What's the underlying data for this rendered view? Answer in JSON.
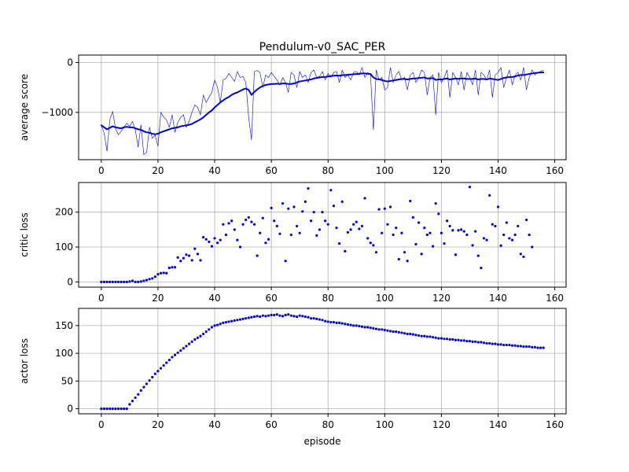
{
  "title": "Pendulum-v0_SAC_PER",
  "colors": {
    "series": "#0000cc",
    "grid": "#b0b0b0",
    "axis": "#000000"
  },
  "chart_data": [
    {
      "id": "score",
      "type": "line",
      "title": "Pendulum-v0_SAC_PER",
      "xlabel": "",
      "ylabel": "average score",
      "xlim": [
        -8,
        164
      ],
      "ylim": [
        -1950,
        150
      ],
      "xticks": [
        0,
        20,
        40,
        60,
        80,
        100,
        120,
        140,
        160
      ],
      "yticks": [
        -1000,
        0
      ],
      "ytick_labels": [
        "−1000",
        "0"
      ],
      "grid": true,
      "series": [
        {
          "style": "thin",
          "values": [
            -1260,
            -1420,
            -1780,
            -1150,
            -980,
            -1320,
            -1450,
            -1380,
            -1300,
            -1220,
            -1280,
            -1180,
            -1350,
            -1700,
            -1250,
            -1850,
            -1800,
            -1300,
            -1520,
            -1460,
            -1680,
            -1000,
            -1090,
            -1150,
            -1300,
            -1050,
            -1400,
            -1200,
            -1100,
            -1050,
            -1300,
            -1180,
            -1000,
            -850,
            -900,
            -1050,
            -650,
            -800,
            -700,
            -600,
            -350,
            -500,
            -800,
            -350,
            -320,
            -220,
            -300,
            -380,
            -180,
            -300,
            -280,
            -400,
            -1100,
            -1550,
            -180,
            -160,
            -200,
            -500,
            -250,
            -300,
            -200,
            -280,
            -350,
            -450,
            -300,
            -400,
            -600,
            -200,
            -250,
            -500,
            -180,
            -300,
            -250,
            -400,
            -200,
            -150,
            -300,
            -280,
            -180,
            -350,
            -220,
            -300,
            -200,
            -180,
            -400,
            -150,
            -300,
            -250,
            -350,
            -200,
            -180,
            -250,
            -100,
            -300,
            -200,
            -250,
            -1350,
            -150,
            -350,
            -300,
            -550,
            -500,
            -100,
            -400,
            -250,
            -180,
            -350,
            -300,
            -550,
            -250,
            -200,
            -400,
            -300,
            -150,
            -200,
            -650,
            -300,
            -250,
            -1050,
            -200,
            -400,
            -300,
            -150,
            -700,
            -200,
            -300,
            -450,
            -180,
            -550,
            -200,
            -300,
            -450,
            -150,
            -650,
            -200,
            -250,
            -350,
            -150,
            -700,
            -250,
            -200,
            -100,
            -500,
            -300,
            -150,
            -450,
            -250,
            -200,
            -350,
            -100,
            -550,
            -300,
            -150,
            -250,
            -200,
            -180,
            -150
          ]
        },
        {
          "style": "thick",
          "values": [
            -1260,
            -1300,
            -1340,
            -1310,
            -1280,
            -1300,
            -1310,
            -1320,
            -1300,
            -1290,
            -1300,
            -1300,
            -1320,
            -1340,
            -1350,
            -1380,
            -1400,
            -1410,
            -1430,
            -1440,
            -1430,
            -1400,
            -1380,
            -1360,
            -1340,
            -1320,
            -1310,
            -1300,
            -1280,
            -1270,
            -1260,
            -1250,
            -1230,
            -1200,
            -1170,
            -1140,
            -1100,
            -1050,
            -1000,
            -960,
            -900,
            -850,
            -800,
            -760,
            -720,
            -690,
            -650,
            -620,
            -600,
            -570,
            -540,
            -520,
            -550,
            -650,
            -590,
            -540,
            -500,
            -470,
            -450,
            -440,
            -430,
            -430,
            -425,
            -430,
            -420,
            -420,
            -430,
            -430,
            -420,
            -400,
            -380,
            -370,
            -360,
            -350,
            -340,
            -320,
            -310,
            -300,
            -290,
            -290,
            -280,
            -270,
            -265,
            -260,
            -265,
            -255,
            -250,
            -245,
            -240,
            -235,
            -230,
            -225,
            -220,
            -220,
            -225,
            -230,
            -300,
            -330,
            -340,
            -350,
            -370,
            -380,
            -370,
            -360,
            -350,
            -340,
            -330,
            -330,
            -340,
            -330,
            -320,
            -320,
            -310,
            -305,
            -300,
            -320,
            -320,
            -310,
            -350,
            -340,
            -340,
            -330,
            -320,
            -340,
            -330,
            -320,
            -330,
            -320,
            -320,
            -330,
            -330,
            -330,
            -320,
            -340,
            -330,
            -330,
            -340,
            -320,
            -330,
            -340,
            -350,
            -330,
            -310,
            -300,
            -290,
            -290,
            -280,
            -260,
            -250,
            -250,
            -240,
            -230,
            -220,
            -210,
            -205,
            -200,
            -200
          ]
        }
      ]
    },
    {
      "id": "critic",
      "type": "scatter",
      "xlabel": "",
      "ylabel": "critic loss",
      "xlim": [
        -8,
        164
      ],
      "ylim": [
        -15,
        285
      ],
      "xticks": [
        0,
        20,
        40,
        60,
        80,
        100,
        120,
        140,
        160
      ],
      "yticks": [
        0,
        100,
        200
      ],
      "ytick_labels": [
        "0",
        "100",
        "200"
      ],
      "grid": true,
      "values": [
        0,
        0,
        0,
        0,
        0,
        0,
        0,
        0,
        0,
        0,
        1,
        3,
        0,
        0,
        1,
        3,
        5,
        8,
        10,
        15,
        22,
        25,
        26,
        25,
        40,
        42,
        42,
        70,
        60,
        68,
        78,
        75,
        62,
        95,
        80,
        62,
        128,
        122,
        115,
        102,
        125,
        112,
        120,
        165,
        135,
        168,
        175,
        150,
        120,
        100,
        165,
        178,
        185,
        172,
        165,
        75,
        140,
        183,
        112,
        122,
        212,
        175,
        160,
        138,
        225,
        60,
        210,
        135,
        215,
        160,
        140,
        202,
        230,
        268,
        175,
        200,
        133,
        150,
        200,
        175,
        165,
        263,
        218,
        155,
        110,
        230,
        88,
        142,
        150,
        165,
        172,
        152,
        160,
        240,
        125,
        112,
        105,
        85,
        208,
        140,
        210,
        165,
        215,
        135,
        155,
        65,
        140,
        85,
        60,
        232,
        185,
        108,
        170,
        80,
        155,
        135,
        140,
        102,
        225,
        195,
        140,
        110,
        175,
        160,
        148,
        78,
        148,
        150,
        145,
        135,
        272,
        105,
        145,
        75,
        40,
        125,
        120,
        248,
        165,
        160,
        215,
        104,
        135,
        170,
        125,
        120,
        135,
        160,
        80,
        72,
        178,
        135,
        100
      ]
    },
    {
      "id": "actor",
      "type": "scatter",
      "xlabel": "episode",
      "ylabel": "actor loss",
      "xlim": [
        -8,
        164
      ],
      "ylim": [
        -9,
        181
      ],
      "xticks": [
        0,
        20,
        40,
        60,
        80,
        100,
        120,
        140,
        160
      ],
      "yticks": [
        0,
        50,
        100,
        150
      ],
      "ytick_labels": [
        "0",
        "50",
        "100",
        "150"
      ],
      "grid": true,
      "values": [
        0,
        0,
        0,
        0,
        0,
        0,
        0,
        0,
        0,
        0,
        8,
        14,
        20,
        26,
        33,
        39,
        45,
        51,
        57,
        63,
        68,
        73,
        78,
        83,
        88,
        93,
        97,
        101,
        105,
        109,
        113,
        117,
        121,
        125,
        128,
        131,
        135,
        139,
        143,
        147,
        150,
        151,
        153,
        155,
        156,
        157,
        158,
        159,
        160,
        161,
        162,
        163,
        164,
        165,
        166,
        167,
        166,
        168,
        167,
        168,
        169,
        169,
        170,
        168,
        167,
        169,
        170,
        168,
        167,
        166,
        168,
        167,
        166,
        165,
        163,
        163,
        162,
        161,
        160,
        158,
        157,
        156,
        156,
        155,
        155,
        154,
        153,
        152,
        151,
        150,
        150,
        149,
        148,
        147,
        147,
        146,
        145,
        144,
        143,
        143,
        142,
        141,
        140,
        139,
        139,
        138,
        137,
        136,
        135,
        135,
        134,
        133,
        132,
        131,
        131,
        130,
        130,
        129,
        128,
        127,
        127,
        126,
        126,
        125,
        125,
        124,
        124,
        123,
        123,
        122,
        122,
        121,
        121,
        120,
        120,
        119,
        118,
        118,
        117,
        117,
        116,
        116,
        115,
        115,
        115,
        114,
        114,
        113,
        113,
        112,
        112,
        112,
        111,
        111,
        110,
        110,
        110
      ]
    }
  ]
}
